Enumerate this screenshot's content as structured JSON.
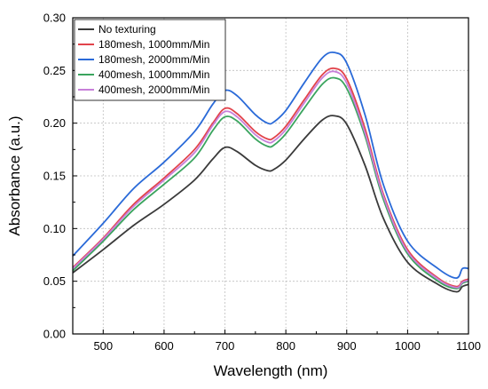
{
  "chart_data": {
    "type": "line",
    "xlabel": "Wavelength (nm)",
    "ylabel": "Absorbance (a.u.)",
    "xlim": [
      450,
      1100
    ],
    "ylim": [
      0.0,
      0.3
    ],
    "xticks": [
      500,
      600,
      700,
      800,
      900,
      1000,
      1100
    ],
    "yticks": [
      0.0,
      0.05,
      0.1,
      0.15,
      0.2,
      0.25,
      0.3
    ],
    "ytick_labels": [
      "0.00",
      "0.05",
      "0.10",
      "0.15",
      "0.20",
      "0.25",
      "0.30"
    ],
    "grid": true,
    "legend_position": "top-left",
    "x": [
      450,
      500,
      550,
      600,
      650,
      680,
      700,
      720,
      750,
      770,
      780,
      800,
      830,
      860,
      880,
      900,
      930,
      960,
      1000,
      1050,
      1080,
      1090,
      1100
    ],
    "series": [
      {
        "name": "No texturing",
        "color": "#3a3a3a",
        "values": [
          0.058,
          0.08,
          0.103,
          0.123,
          0.146,
          0.166,
          0.177,
          0.173,
          0.16,
          0.155,
          0.156,
          0.165,
          0.185,
          0.203,
          0.207,
          0.199,
          0.16,
          0.11,
          0.068,
          0.047,
          0.04,
          0.045,
          0.047
        ]
      },
      {
        "name": "180mesh, 1000mm/Min",
        "color": "#e2434b",
        "values": [
          0.063,
          0.091,
          0.123,
          0.148,
          0.175,
          0.2,
          0.214,
          0.209,
          0.192,
          0.185,
          0.186,
          0.197,
          0.222,
          0.246,
          0.252,
          0.242,
          0.195,
          0.133,
          0.08,
          0.053,
          0.045,
          0.05,
          0.052
        ]
      },
      {
        "name": "180mesh, 2000mm/Min",
        "color": "#2a6ad8",
        "values": [
          0.074,
          0.105,
          0.138,
          0.163,
          0.192,
          0.218,
          0.231,
          0.226,
          0.208,
          0.2,
          0.201,
          0.212,
          0.238,
          0.262,
          0.267,
          0.257,
          0.208,
          0.142,
          0.088,
          0.062,
          0.053,
          0.062,
          0.062
        ]
      },
      {
        "name": "400mesh, 1000mm/Min",
        "color": "#3aa45e",
        "values": [
          0.06,
          0.088,
          0.118,
          0.142,
          0.167,
          0.193,
          0.206,
          0.202,
          0.185,
          0.178,
          0.179,
          0.19,
          0.214,
          0.237,
          0.243,
          0.233,
          0.188,
          0.128,
          0.076,
          0.05,
          0.043,
          0.048,
          0.05
        ]
      },
      {
        "name": "400mesh, 2000mm/Min",
        "color": "#c77fd9",
        "values": [
          0.062,
          0.09,
          0.121,
          0.146,
          0.172,
          0.198,
          0.211,
          0.206,
          0.189,
          0.182,
          0.183,
          0.194,
          0.219,
          0.243,
          0.249,
          0.238,
          0.191,
          0.131,
          0.078,
          0.052,
          0.044,
          0.049,
          0.051
        ]
      }
    ]
  }
}
